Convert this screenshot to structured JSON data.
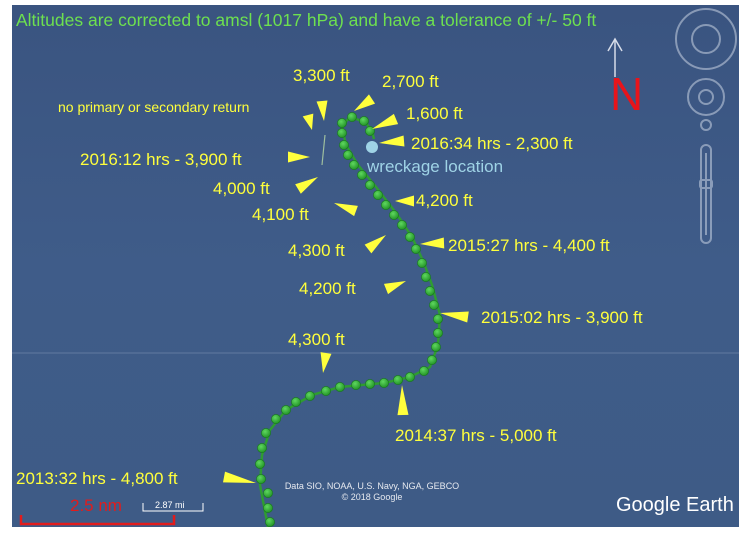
{
  "header_note": "Altitudes are corrected to amsl (1017 hPa) and have a tolerance of +/- 50 ft",
  "north_label": "N",
  "annotations": [
    {
      "text": "3,300 ft"
    },
    {
      "text": "2,700 ft"
    },
    {
      "text": "no primary or secondary return"
    },
    {
      "text": "1,600 ft"
    },
    {
      "text": "2016:34 hrs - 2,300 ft"
    },
    {
      "text": "2016:12 hrs - 3,900 ft"
    },
    {
      "text": "4,000 ft"
    },
    {
      "text": "4,200 ft"
    },
    {
      "text": "4,100 ft"
    },
    {
      "text": "4,300 ft"
    },
    {
      "text": "2015:27 hrs - 4,400 ft"
    },
    {
      "text": "4,200 ft"
    },
    {
      "text": "2015:02 hrs - 3,900 ft"
    },
    {
      "text": "4,300 ft"
    },
    {
      "text": "2014:37 hrs - 5,000 ft"
    },
    {
      "text": "2013:32 hrs - 4,800 ft"
    }
  ],
  "wreckage_label": "wreckage location",
  "scale_bar": {
    "label": "2.5 nm",
    "mi_label": "2.87 mi"
  },
  "attribution": {
    "line1": "Data SIO, NOAA, U.S. Navy, NGA, GEBCO",
    "line2": "© 2018 Google"
  },
  "brand": "Google Earth",
  "colors": {
    "water": "#3d5a85",
    "track": "#2fae33",
    "label": "#ffff3c",
    "header": "#6de04f",
    "wreckage": "#9fd3e6",
    "north": "#e8141b",
    "scale": "#e11c1c"
  }
}
